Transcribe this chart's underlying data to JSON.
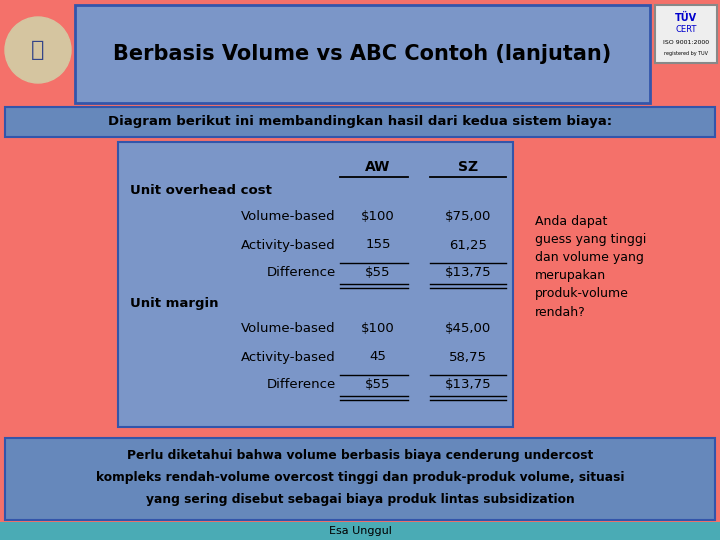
{
  "title": "Berbasis Volume vs ABC Contoh (lanjutan)",
  "subtitle": "Diagram berikut ini membandingkan hasil dari kedua sistem biaya:",
  "bg_color": "#F4716A",
  "title_box_color": "#7B96C8",
  "subtitle_box_color": "#6688BB",
  "table_bg_color": "#7B96C8",
  "footer_box_color": "#6688BB",
  "footer_text_line1": "Perlu diketahui bahwa volume berbasis biaya cenderung undercost",
  "footer_text_line2": "kompleks rendah-volume overcost tinggi dan produk-produk volume, situasi",
  "footer_text_line3": "yang sering disebut sebagai biaya produk lintas subsidization",
  "side_text_lines": [
    "Anda dapat",
    "guess yang tinggi",
    "dan volume yang",
    "merupakan",
    "produk-volume",
    "rendah?"
  ],
  "table_rows": [
    {
      "label": "Unit overhead cost",
      "aw": "",
      "sz": "",
      "type": "section"
    },
    {
      "label": "Volume-based",
      "aw": "$100",
      "sz": "$75,00",
      "type": "data"
    },
    {
      "label": "Activity-based",
      "aw": "155",
      "sz": "61,25",
      "type": "data"
    },
    {
      "label": "Difference",
      "aw": "$55",
      "sz": "$13,75",
      "type": "diff"
    },
    {
      "label": "Unit margin",
      "aw": "",
      "sz": "",
      "type": "section"
    },
    {
      "label": "Volume-based",
      "aw": "$100",
      "sz": "$45,00",
      "type": "data"
    },
    {
      "label": "Activity-based",
      "aw": "45",
      "sz": "58,75",
      "type": "data"
    },
    {
      "label": "Difference",
      "aw": "$55",
      "sz": "$13,75",
      "type": "diff"
    }
  ],
  "bottom_bar_color": "#4AABB5",
  "bottom_bar_text": "Esa Unggul",
  "tuv_box_color": "#EEEEEE",
  "tuv_text": "TUV\nCERT\nISO 9001:2000"
}
